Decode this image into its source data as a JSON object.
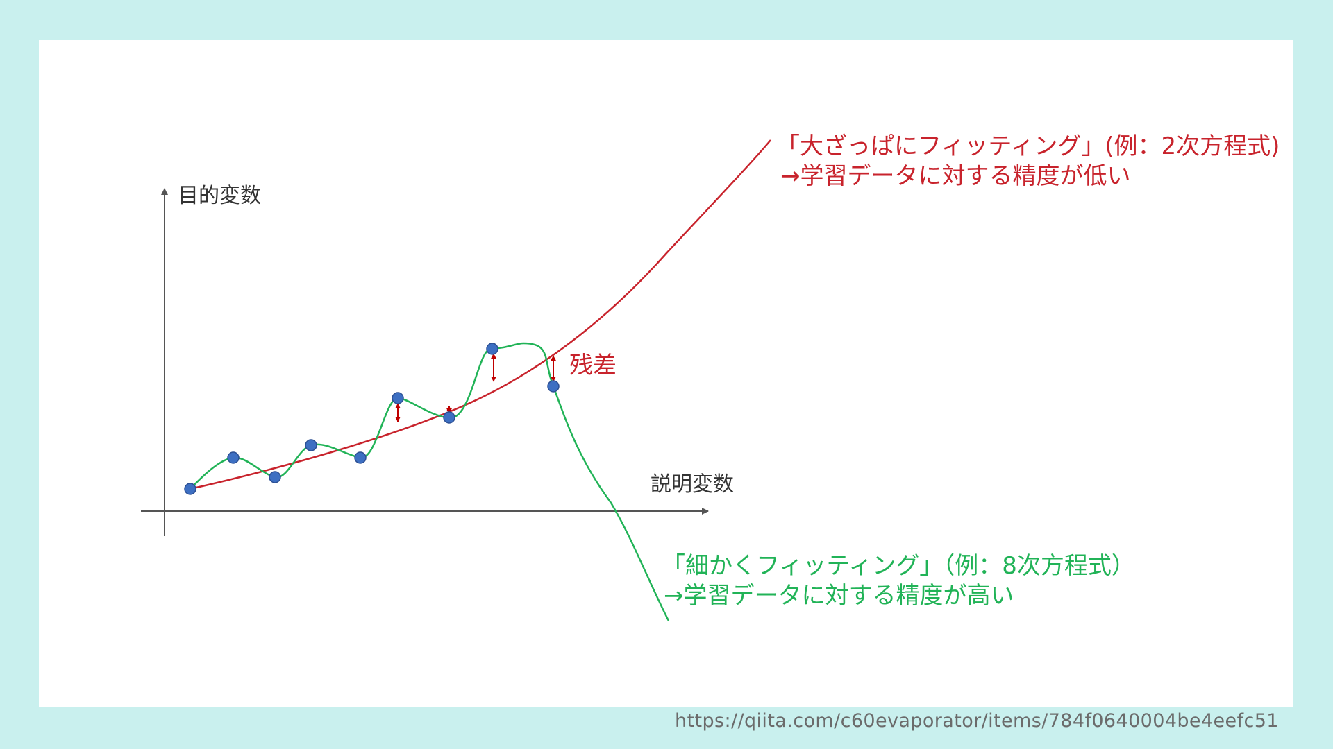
{
  "axes": {
    "y_label": "目的変数",
    "x_label": "説明変数"
  },
  "annotations": {
    "coarse_fit_line1": "「大ざっぱにフィッティング」(例：2次方程式)",
    "coarse_fit_line2": "→学習データに対する精度が低い",
    "fine_fit_line1": "「細かくフィッティング」（例：8次方程式）",
    "fine_fit_line2": "→学習データに対する精度が高い",
    "residual": "残差"
  },
  "source_url": "https://qiita.com/c60evaporator/items/784f0640004be4eefc51",
  "colors": {
    "background": "#c9f0ee",
    "coarse_fit": "#c8232c",
    "fine_fit": "#21b357",
    "data_point": "#3d6fc2",
    "residual_arrow": "#c00000",
    "axis": "#555555"
  }
}
